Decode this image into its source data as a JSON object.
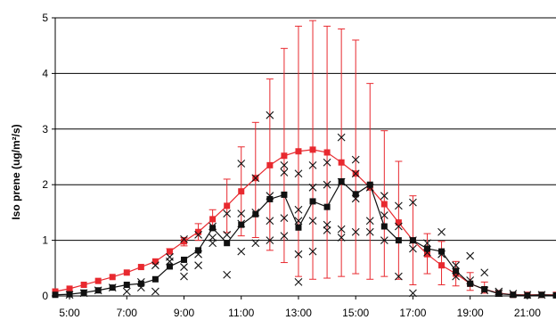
{
  "chart_data": {
    "type": "scatter",
    "title": "",
    "xlabel": "",
    "ylabel": "Iso prene (ug/m²/s)",
    "xlim": [
      4.5,
      22.0
    ],
    "ylim": [
      0,
      5
    ],
    "x_tick_values": [
      5,
      7,
      9,
      11,
      13,
      15,
      17,
      19,
      21
    ],
    "x_tick_labels": [
      "5:00",
      "7:00",
      "9:00",
      "11:00",
      "13:00",
      "15:00",
      "17:00",
      "19:00",
      "21:00"
    ],
    "y_tick_values": [
      0,
      1,
      2,
      3,
      4,
      5
    ],
    "y_tick_labels": [
      "0",
      "1",
      "2",
      "3",
      "4",
      "5"
    ],
    "grid": {
      "horizontal": true,
      "vertical": false
    },
    "legend": "none",
    "series": [
      {
        "style": "red-square-line-with-error-bars",
        "color": "#e8292f",
        "x": [
          4.5,
          5.0,
          5.5,
          6.0,
          6.5,
          7.0,
          7.5,
          8.0,
          8.5,
          9.0,
          9.5,
          10.0,
          10.5,
          11.0,
          11.5,
          12.0,
          12.5,
          13.0,
          13.5,
          14.0,
          14.5,
          15.0,
          15.5,
          16.0,
          16.5,
          17.0,
          17.5,
          18.0,
          18.5,
          19.0,
          19.5,
          20.0,
          20.5,
          21.0,
          21.5,
          22.0
        ],
        "y": [
          0.08,
          0.13,
          0.2,
          0.27,
          0.34,
          0.42,
          0.52,
          0.62,
          0.8,
          0.98,
          1.15,
          1.38,
          1.62,
          1.88,
          2.12,
          2.35,
          2.52,
          2.6,
          2.63,
          2.58,
          2.4,
          2.2,
          1.95,
          1.65,
          1.32,
          1.0,
          0.75,
          0.55,
          0.4,
          0.22,
          0.12,
          0.05,
          0.02,
          0.02,
          0.02,
          0.02
        ],
        "error_high": [
          0,
          0,
          0,
          0,
          0,
          0,
          0,
          0,
          0.85,
          1.05,
          1.3,
          1.55,
          2.1,
          2.68,
          3.12,
          3.9,
          4.45,
          4.85,
          4.95,
          4.85,
          4.8,
          4.6,
          3.82,
          2.97,
          2.42,
          1.8,
          1.12,
          0.98,
          0.62,
          0.42,
          0.25,
          0.12,
          0,
          0,
          0,
          0
        ],
        "error_low": [
          0,
          0,
          0,
          0,
          0,
          0,
          0,
          0,
          0.75,
          0.9,
          1.0,
          1.2,
          1.14,
          1.08,
          1.05,
          0.82,
          0.6,
          0.35,
          0.3,
          0.32,
          0.35,
          0.4,
          0.3,
          0.35,
          0.3,
          0.2,
          0.4,
          0.2,
          0.18,
          0.1,
          0.05,
          0,
          0,
          0,
          0,
          0
        ]
      },
      {
        "style": "black-square-line",
        "color": "#111111",
        "x": [
          4.5,
          5.0,
          5.5,
          6.0,
          6.5,
          7.0,
          7.5,
          8.0,
          8.5,
          9.0,
          9.5,
          10.0,
          10.5,
          11.0,
          11.5,
          12.0,
          12.5,
          13.0,
          13.5,
          14.0,
          14.5,
          15.0,
          15.5,
          16.0,
          16.5,
          17.0,
          17.5,
          18.0,
          18.5,
          19.0,
          19.5,
          20.0,
          20.5,
          21.0,
          21.5,
          22.0
        ],
        "y": [
          0.02,
          0.03,
          0.06,
          0.1,
          0.15,
          0.2,
          0.22,
          0.3,
          0.53,
          0.65,
          0.82,
          1.22,
          0.95,
          1.28,
          1.47,
          1.74,
          1.82,
          1.23,
          1.7,
          1.6,
          2.06,
          1.83,
          2.0,
          1.25,
          1.0,
          1.0,
          0.85,
          0.8,
          0.45,
          0.22,
          0.12,
          0.04,
          0.02,
          0.01,
          0.02,
          0.01
        ]
      },
      {
        "style": "black-x-markers",
        "color": "#111111",
        "x": [
          5.0,
          5.5,
          6.0,
          6.5,
          7.0,
          7.5,
          7.5,
          8.0,
          8.0,
          8.5,
          8.5,
          9.0,
          9.0,
          9.0,
          9.5,
          9.5,
          9.5,
          10.0,
          10.0,
          10.0,
          10.5,
          10.5,
          10.5,
          11.0,
          11.0,
          11.0,
          11.0,
          11.5,
          11.5,
          11.5,
          12.0,
          12.0,
          12.0,
          12.0,
          12.5,
          12.5,
          12.5,
          12.5,
          13.0,
          13.0,
          13.0,
          13.0,
          13.0,
          13.5,
          13.5,
          13.5,
          13.5,
          14.0,
          14.0,
          14.0,
          14.0,
          14.5,
          14.5,
          14.5,
          14.5,
          15.0,
          15.0,
          15.0,
          15.0,
          15.5,
          15.5,
          15.5,
          16.0,
          16.0,
          16.0,
          16.5,
          16.5,
          16.5,
          17.0,
          17.0,
          17.0,
          17.0,
          17.5,
          17.5,
          18.0,
          18.0,
          18.5,
          18.5,
          19.0,
          19.0,
          19.5,
          19.5,
          20.0,
          20.0,
          20.5,
          21.0,
          21.5
        ],
        "y": [
          0.02,
          0.05,
          0.1,
          0.15,
          0.08,
          0.15,
          0.25,
          0.08,
          0.55,
          0.62,
          0.7,
          1.02,
          0.52,
          0.35,
          1.1,
          0.75,
          0.55,
          1.25,
          1.05,
          0.95,
          1.48,
          1.1,
          0.38,
          2.38,
          1.48,
          1.3,
          0.8,
          2.12,
          1.5,
          0.95,
          3.25,
          1.8,
          1.35,
          1.0,
          2.35,
          2.22,
          1.4,
          1.08,
          2.2,
          1.55,
          1.35,
          0.75,
          0.25,
          2.35,
          1.95,
          1.35,
          0.8,
          2.4,
          2.0,
          1.28,
          1.18,
          2.85,
          2.05,
          1.2,
          1.05,
          2.45,
          2.2,
          1.75,
          1.15,
          1.95,
          1.35,
          1.15,
          1.8,
          1.45,
          1.0,
          1.62,
          1.25,
          0.35,
          1.68,
          1.0,
          0.85,
          0.05,
          0.95,
          0.78,
          1.15,
          0.75,
          0.55,
          0.35,
          0.72,
          0.28,
          0.42,
          0.1,
          0.08,
          0.05,
          0.04,
          0.02,
          0.02
        ]
      }
    ]
  }
}
